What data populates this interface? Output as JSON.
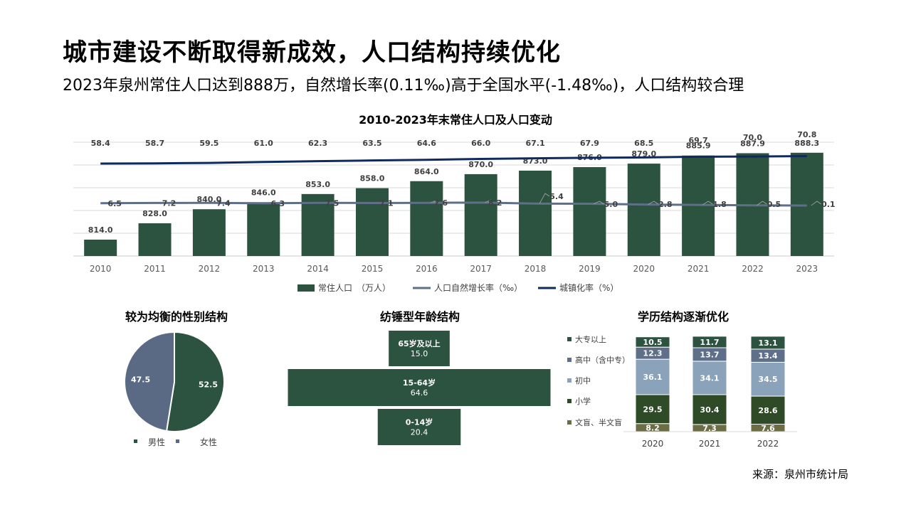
{
  "header": {
    "title": "城市建设不断取得新成效，人口结构持续优化",
    "subtitle": "2023年泉州常住人口达到888万，自然增长率(0.11‰)高于全国水平(-1.48‰)，人口结构较合理"
  },
  "source": "来源：泉州市统计局",
  "colors": {
    "bar": "#2c5240",
    "growth_line": "#5f6f89",
    "urban_line": "#0f2a5c",
    "male": "#2c5240",
    "female": "#5a6a85",
    "edu_college": "#2c5240",
    "edu_high": "#5f6f89",
    "edu_junior": "#8aa3bb",
    "edu_primary": "#2f4a26",
    "edu_illiterate": "#6b6e45"
  },
  "chart_data": [
    {
      "type": "bar+line",
      "title": "2010-2023年末常住人口及人口变动",
      "categories": [
        "2010",
        "2011",
        "2012",
        "2013",
        "2014",
        "2015",
        "2016",
        "2017",
        "2018",
        "2019",
        "2020",
        "2021",
        "2022",
        "2023"
      ],
      "series": [
        {
          "name": "常住人口　（万人）",
          "type": "bar",
          "values": [
            814.0,
            828.0,
            840.0,
            846.0,
            853.0,
            858.0,
            864.0,
            870.0,
            873.0,
            876.0,
            879.0,
            885.9,
            887.9,
            888.3
          ],
          "labels": [
            "814.0",
            "828.0",
            "840.0",
            "846.0",
            "853.0",
            "858.0",
            "864.0",
            "870.0",
            "873.0",
            "876.0",
            "879.0",
            "885.9",
            "887.9",
            "888.3"
          ]
        },
        {
          "name": "人口自然增长率（‰）",
          "type": "line",
          "values": [
            6.5,
            7.2,
            7.4,
            6.3,
            7.5,
            7.1,
            7.6,
            8.2,
            5.4,
            5.0,
            2.8,
            1.8,
            0.5,
            0.1
          ],
          "labels": [
            "6.5",
            "7.2",
            "7.4",
            "6.3",
            "7.5",
            "7.1",
            "7.6",
            "8.2",
            "5.4",
            "5.0",
            "2.8",
            "1.8",
            "0.5",
            "0.1"
          ]
        },
        {
          "name": "城镇化率（%）",
          "type": "line",
          "values": [
            58.4,
            58.7,
            59.5,
            61.0,
            62.3,
            63.5,
            64.6,
            66.0,
            67.1,
            67.9,
            68.5,
            69.7,
            70.0,
            70.8
          ],
          "labels": [
            "58.4",
            "58.7",
            "59.5",
            "61.0",
            "62.3",
            "63.5",
            "64.6",
            "66.0",
            "67.1",
            "67.9",
            "68.5",
            "69.7",
            "70.0",
            "70.8"
          ]
        }
      ]
    },
    {
      "type": "pie",
      "title": "较为均衡的性别结构",
      "categories": [
        "男性",
        "女性"
      ],
      "values": [
        52.5,
        47.5
      ],
      "labels": [
        "52.5",
        "47.5"
      ]
    },
    {
      "type": "bar",
      "title": "纺锤型年龄结构",
      "categories": [
        "65岁及以上",
        "15-64岁",
        "0-14岁"
      ],
      "values": [
        15.0,
        64.6,
        20.4
      ],
      "labels": [
        "15.0",
        "64.6",
        "20.4"
      ]
    },
    {
      "type": "stacked-bar",
      "title": "学历结构逐渐优化",
      "categories": [
        "2020",
        "2021",
        "2022"
      ],
      "series": [
        {
          "name": "文盲、半文盲",
          "values": [
            8.2,
            7.3,
            7.6
          ],
          "labels": [
            "8.2",
            "7.3",
            "7.6"
          ]
        },
        {
          "name": "小学",
          "values": [
            29.5,
            30.4,
            28.6
          ],
          "labels": [
            "29.5",
            "30.4",
            "28.6"
          ]
        },
        {
          "name": "初中",
          "values": [
            36.1,
            34.1,
            34.5
          ],
          "labels": [
            "36.1",
            "34.1",
            "34.5"
          ]
        },
        {
          "name": "高中（含中专）",
          "values": [
            12.3,
            13.7,
            13.4
          ],
          "labels": [
            "12.3",
            "13.7",
            "13.4"
          ]
        },
        {
          "name": "大专以上",
          "values": [
            10.5,
            11.7,
            13.1
          ],
          "labels": [
            "10.5",
            "11.7",
            "13.1"
          ]
        }
      ],
      "legend_order": [
        "大专以上",
        "高中（含中专）",
        "初中",
        "小学",
        "文盲、半文盲"
      ]
    }
  ]
}
